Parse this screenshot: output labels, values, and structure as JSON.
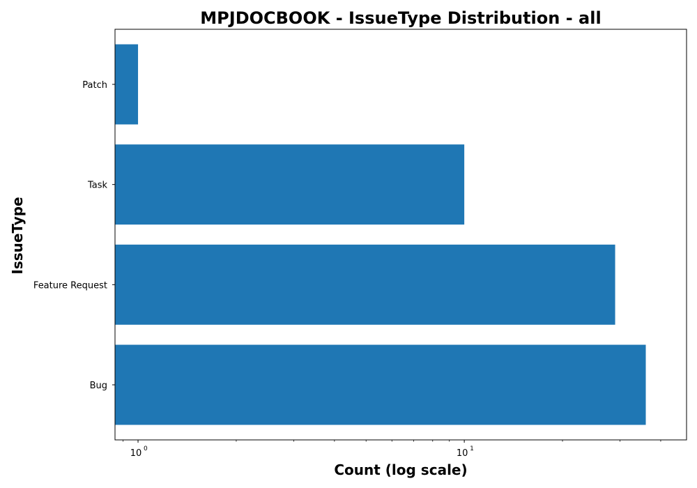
{
  "chart_data": {
    "type": "bar",
    "orientation": "horizontal",
    "title": "MPJDOCBOOK - IssueType Distribution - all",
    "xlabel": "Count (log scale)",
    "ylabel": "IssueType",
    "x_scale": "log",
    "xlim": [
      0.85,
      48
    ],
    "categories": [
      "Patch",
      "Task",
      "Feature Request",
      "Bug"
    ],
    "values": [
      1,
      10,
      29,
      36
    ],
    "bar_color": "#1f77b4",
    "grid": false,
    "legend": "none",
    "x_ticks": [
      {
        "value": 1,
        "base": "10",
        "exp": "0"
      },
      {
        "value": 10,
        "base": "10",
        "exp": "1"
      }
    ]
  }
}
